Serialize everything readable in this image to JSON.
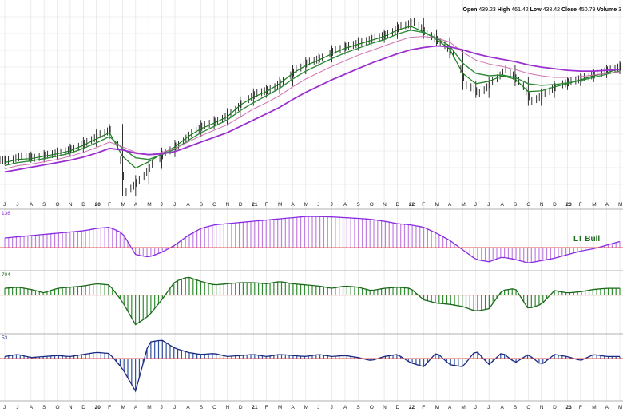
{
  "header": {
    "open_label": "Open",
    "open_value": "439.23",
    "high_label": "High",
    "high_value": "461.42",
    "low_label": "Low",
    "low_value": "438.42",
    "close_label": "Close",
    "close_value": "450.79",
    "volume_label": "Volume",
    "volume_value": "3"
  },
  "colors": {
    "price_bars": "#000000",
    "ma_short": "#1a7a1a",
    "ma_mid": "#2e8b3a",
    "ma_pink": "#d070b0",
    "ma_long": "#9b30d0",
    "ind1_fill": "#c080e0",
    "ind1_line": "#8a2be2",
    "ind2_fill": "#2e8b2e",
    "ind2_line": "#1a6a1a",
    "ind3_fill": "#3050a0",
    "ind3_line": "#1a2a80",
    "zero_line": "#e05050",
    "grid": "#e0e0e0"
  },
  "axis": {
    "x_ticks": [
      "J",
      "J",
      "A",
      "S",
      "O",
      "N",
      "D",
      "20",
      "F",
      "M",
      "A",
      "M",
      "J",
      "J",
      "A",
      "S",
      "O",
      "N",
      "D",
      "21",
      "F",
      "M",
      "A",
      "M",
      "J",
      "J",
      "A",
      "S",
      "O",
      "N",
      "D",
      "22",
      "F",
      "M",
      "A",
      "M",
      "J",
      "J",
      "A",
      "S",
      "O",
      "N",
      "D",
      "23",
      "F",
      "M",
      "A",
      "M"
    ]
  },
  "panels": {
    "ind1_label": "136",
    "ind1_annotation": "LT Bull",
    "ind2_label": "704",
    "ind3_label": "53"
  },
  "chart_data": [
    {
      "type": "line",
      "panel": "price",
      "x_labels": [
        "J",
        "J",
        "A",
        "S",
        "O",
        "N",
        "D",
        "20",
        "F",
        "M",
        "A",
        "M",
        "J",
        "J",
        "A",
        "S",
        "O",
        "N",
        "D",
        "21",
        "F",
        "M",
        "A",
        "M",
        "J",
        "J",
        "A",
        "S",
        "O",
        "N",
        "D",
        "22",
        "F",
        "M",
        "A",
        "M",
        "J",
        "J",
        "A",
        "S",
        "O",
        "N",
        "D",
        "23",
        "F",
        "M",
        "A",
        "M"
      ],
      "series": [
        {
          "values": [
            295,
            300,
            298,
            302,
            305,
            310,
            318,
            328,
            335,
            255,
            270,
            290,
            305,
            315,
            330,
            340,
            345,
            355,
            370,
            380,
            385,
            395,
            410,
            420,
            425,
            435,
            440,
            445,
            450,
            455,
            465,
            470,
            455,
            445,
            430,
            390,
            380,
            395,
            410,
            395,
            370,
            380,
            390,
            395,
            400,
            405,
            410,
            415
          ]
        },
        {
          "values": [
            292,
            296,
            297,
            300,
            303,
            307,
            314,
            322,
            330,
            300,
            285,
            293,
            303,
            312,
            325,
            335,
            342,
            350,
            365,
            375,
            382,
            392,
            405,
            415,
            422,
            430,
            437,
            442,
            447,
            452,
            460,
            465,
            458,
            448,
            436,
            405,
            392,
            395,
            402,
            398,
            382,
            383,
            388,
            392,
            397,
            402,
            406,
            411
          ]
        },
        {
          "values": [
            288,
            292,
            294,
            297,
            300,
            304,
            310,
            317,
            325,
            310,
            298,
            296,
            302,
            309,
            320,
            330,
            338,
            346,
            358,
            368,
            377,
            386,
            398,
            408,
            416,
            424,
            431,
            437,
            443,
            448,
            455,
            460,
            457,
            450,
            440,
            418,
            405,
            402,
            403,
            400,
            392,
            390,
            391,
            393,
            396,
            400,
            404,
            408
          ]
        },
        {
          "values": [
            284,
            288,
            290,
            293,
            296,
            300,
            305,
            311,
            318,
            312,
            305,
            302,
            305,
            310,
            318,
            326,
            333,
            340,
            350,
            360,
            368,
            377,
            388,
            398,
            406,
            414,
            421,
            428,
            434,
            440,
            446,
            451,
            452,
            450,
            445,
            432,
            422,
            417,
            414,
            410,
            405,
            402,
            400,
            400,
            401,
            403,
            405,
            407
          ]
        },
        {
          "values": [
            280,
            283,
            286,
            289,
            292,
            295,
            299,
            304,
            310,
            308,
            304,
            302,
            303,
            306,
            312,
            318,
            324,
            330,
            338,
            346,
            354,
            362,
            372,
            381,
            389,
            397,
            404,
            411,
            418,
            424,
            430,
            435,
            438,
            440,
            439,
            435,
            430,
            426,
            423,
            420,
            416,
            413,
            411,
            409,
            408,
            408,
            409,
            410
          ]
        }
      ]
    },
    {
      "type": "bar",
      "panel": "indicator-1",
      "values": [
        0.4,
        0.45,
        0.5,
        0.55,
        0.6,
        0.65,
        0.7,
        0.8,
        0.85,
        0.6,
        -0.3,
        -0.4,
        -0.2,
        0.1,
        0.5,
        0.8,
        0.95,
        1.0,
        1.05,
        1.1,
        1.15,
        1.2,
        1.25,
        1.3,
        1.3,
        1.28,
        1.25,
        1.22,
        1.18,
        1.1,
        1.0,
        0.95,
        0.85,
        0.6,
        0.3,
        -0.1,
        -0.5,
        -0.6,
        -0.4,
        -0.5,
        -0.65,
        -0.55,
        -0.45,
        -0.3,
        -0.15,
        -0.05,
        0.1,
        0.25
      ],
      "zero": 0
    },
    {
      "type": "bar",
      "panel": "indicator-2",
      "values": [
        0.3,
        0.35,
        0.25,
        0.1,
        0.3,
        0.35,
        0.4,
        0.5,
        0.45,
        -0.3,
        -1.3,
        -0.9,
        -0.2,
        0.6,
        0.8,
        0.6,
        0.45,
        0.5,
        0.55,
        0.55,
        0.5,
        0.6,
        0.5,
        0.45,
        0.4,
        0.3,
        0.4,
        0.35,
        0.2,
        0.3,
        0.35,
        0.3,
        -0.2,
        -0.35,
        -0.4,
        -0.5,
        -0.7,
        -0.6,
        0.2,
        0.3,
        -0.6,
        -0.4,
        0.2,
        0.1,
        0.15,
        0.25,
        0.3,
        0.3
      ],
      "zero": 0
    },
    {
      "type": "bar",
      "panel": "indicator-3",
      "values": [
        0.1,
        0.2,
        0.05,
        0.1,
        0.15,
        0.1,
        0.2,
        0.3,
        0.25,
        -0.5,
        -1.6,
        0.8,
        0.9,
        0.5,
        0.3,
        0.2,
        0.25,
        0.1,
        0.15,
        0.2,
        0.1,
        0.2,
        0.15,
        0.1,
        0.2,
        0.1,
        0.15,
        0.05,
        -0.1,
        0.1,
        0.2,
        -0.2,
        -0.4,
        0.3,
        -0.3,
        -0.4,
        0.4,
        -0.3,
        0.3,
        -0.2,
        0.2,
        -0.3,
        0.2,
        0.1,
        -0.1,
        0.2,
        0.1,
        0.1
      ],
      "zero": 0
    }
  ]
}
